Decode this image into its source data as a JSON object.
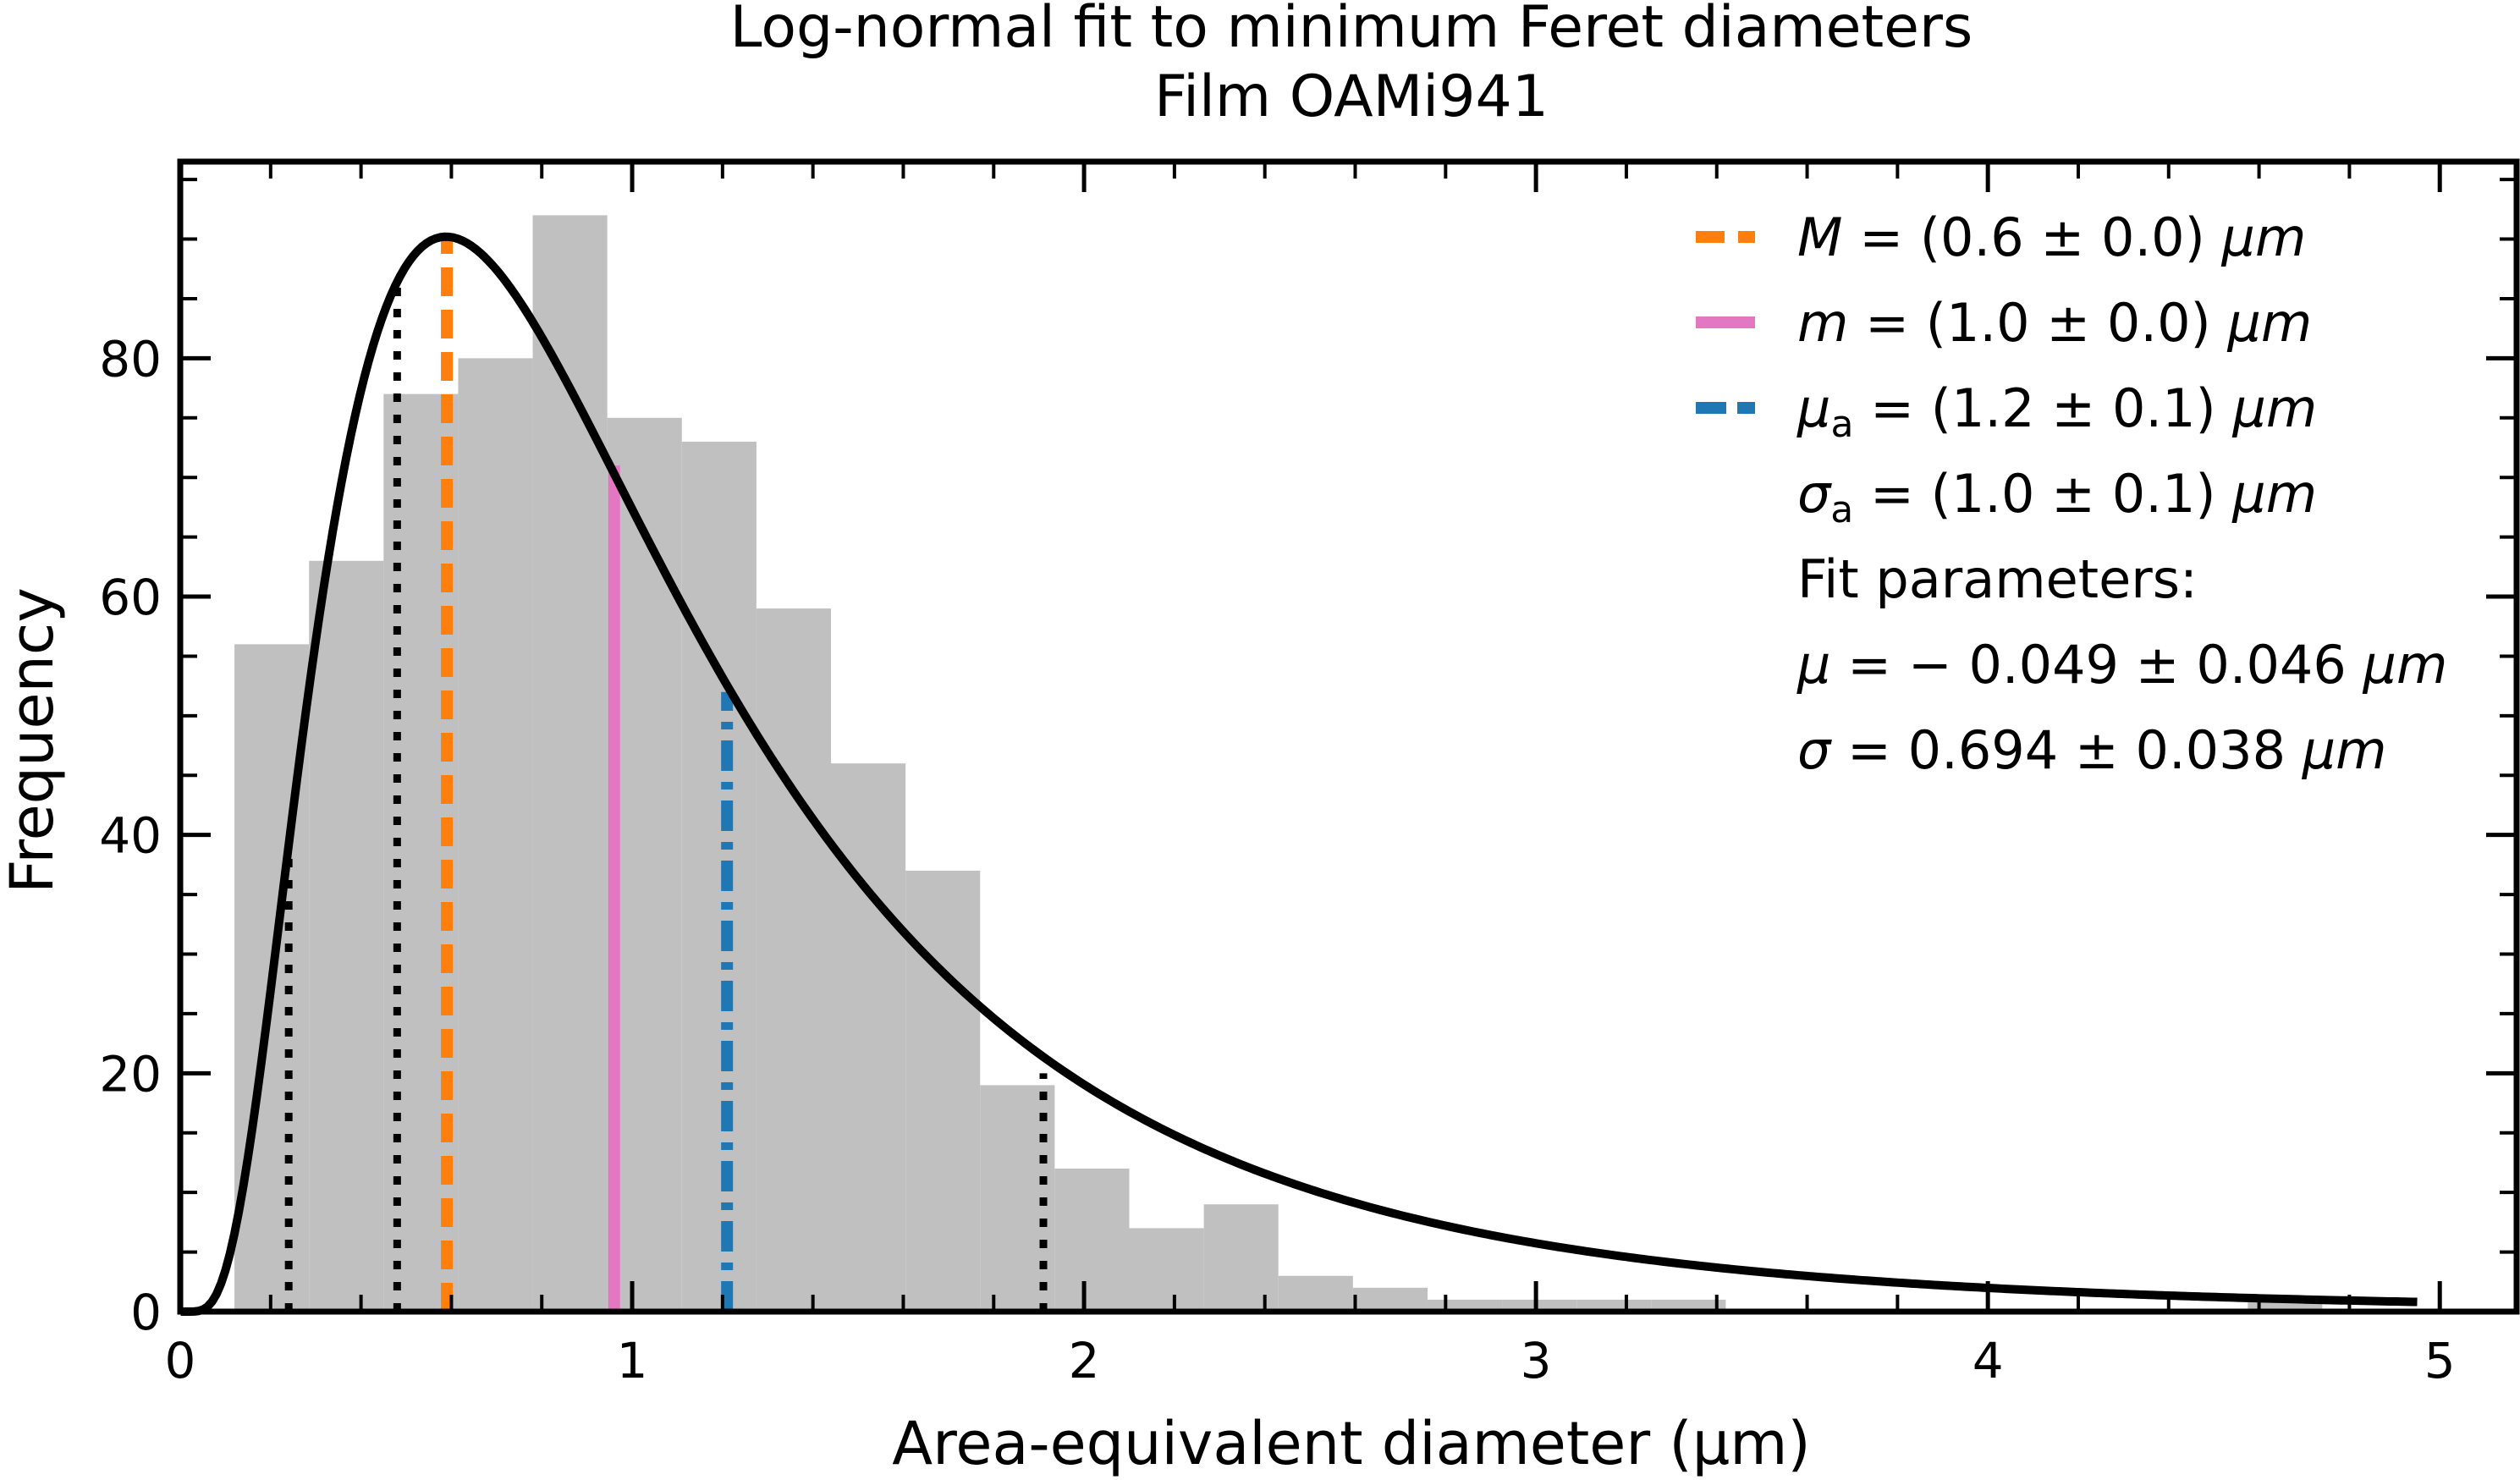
{
  "chart_data": {
    "type": "bar",
    "title": "Log-normal fit to minimum Feret diameters",
    "subtitle": "Film OAMi941",
    "xlabel": "Area-equivalent diameter (μm)",
    "ylabel": "Frequency",
    "xlim": [
      0,
      5.17
    ],
    "ylim": [
      0,
      96.5
    ],
    "xticks": [
      0,
      1,
      2,
      3,
      4,
      5
    ],
    "yticks": [
      0,
      20,
      40,
      60,
      80
    ],
    "grid": false,
    "legend_position": "top-right",
    "histogram": {
      "color": "#c0c0c0",
      "bin_edges": [
        0.12,
        0.285,
        0.45,
        0.615,
        0.78,
        0.945,
        1.11,
        1.275,
        1.44,
        1.605,
        1.77,
        1.935,
        2.1,
        2.265,
        2.43,
        2.595,
        2.76,
        2.925,
        3.09,
        3.255,
        3.42,
        3.585,
        3.75,
        3.915,
        4.08,
        4.245,
        4.41,
        4.575,
        4.74
      ],
      "counts": [
        56,
        63,
        77,
        80,
        92,
        75,
        73,
        59,
        46,
        37,
        19,
        12,
        7,
        9,
        3,
        2,
        1,
        1,
        1,
        1,
        0,
        0,
        0,
        0,
        0,
        0,
        0,
        1
      ]
    },
    "fit_curve": {
      "type": "line",
      "color": "#000000",
      "mu": -0.049,
      "sigma": 0.694,
      "peak_value": 90.2,
      "x_range": [
        0,
        4.95
      ]
    },
    "quantile_lines": {
      "color": "#000000",
      "style": "dotted",
      "lines": [
        {
          "x": 0.24,
          "y_top": 38
        },
        {
          "x": 0.48,
          "y_top": 86
        },
        {
          "x": 1.91,
          "y_top": 20
        }
      ]
    },
    "statistic_lines": [
      {
        "key": "M",
        "x": 0.59,
        "y_top": 90,
        "color": "#ff7f0e",
        "style": "dashed"
      },
      {
        "key": "m",
        "x": 0.96,
        "y_top": 71,
        "color": "#e377c2",
        "style": "solid"
      },
      {
        "key": "mu_a",
        "x": 1.21,
        "y_top": 52,
        "color": "#1f77b4",
        "style": "dashdot"
      }
    ],
    "legend": [
      {
        "symbol": "M",
        "text": " = (0.6 ± 0.0) ",
        "unit": "μm",
        "color": "#ff7f0e",
        "style": "dashed"
      },
      {
        "symbol": "m",
        "text": " = (1.0 ± 0.0) ",
        "unit": "μm",
        "color": "#e377c2",
        "style": "solid"
      },
      {
        "symbol": "μ",
        "subscript": "a",
        "text": " = (1.2 ± 0.1) ",
        "unit": "μm",
        "color": "#1f77b4",
        "style": "dashdot"
      },
      {
        "symbol": "σ",
        "subscript": "a",
        "text": " = (1.0 ± 0.1) ",
        "unit": "μm"
      }
    ],
    "annotations": {
      "fit_header": "Fit parameters:",
      "mu_line": {
        "symbol": "μ",
        "text": " = − 0.049 ± 0.046 ",
        "unit": "μm"
      },
      "sigma_line": {
        "symbol": "σ",
        "text": " = 0.694 ± 0.038 ",
        "unit": "μm"
      }
    }
  }
}
